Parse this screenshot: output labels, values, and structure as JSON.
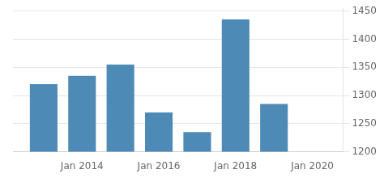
{
  "chart_data": {
    "type": "bar",
    "x": [
      2013,
      2014,
      2015,
      2016,
      2017,
      2018,
      2019
    ],
    "values": [
      1320,
      1335,
      1355,
      1270,
      1235,
      1435,
      1285
    ],
    "color": "#4d8ab5",
    "xlim": [
      2012.2,
      2020.8
    ],
    "xticks": [
      {
        "value": 2014,
        "label": "Jan 2014"
      },
      {
        "value": 2016,
        "label": "Jan 2016"
      },
      {
        "value": 2018,
        "label": "Jan 2018"
      },
      {
        "value": 2020,
        "label": "Jan 2020"
      }
    ],
    "ylim": [
      1200,
      1455
    ],
    "yticks": [
      1200,
      1250,
      1300,
      1350,
      1400,
      1450
    ],
    "grid": true
  }
}
